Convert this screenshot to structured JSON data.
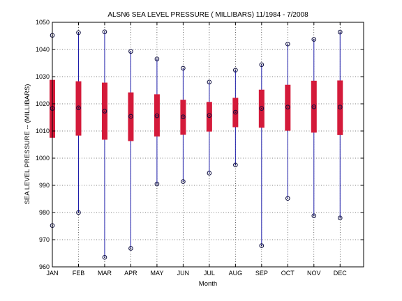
{
  "chart_data": {
    "type": "box",
    "title": "ALSN6  SEA LEVEL PRESSURE ( MILLIBARS) 11/1984 - 7/2008",
    "xlabel": "Month",
    "ylabel": "SEA LEVEL PRESSURE -- (MILLIBARS)",
    "ylim": [
      960,
      1050
    ],
    "yticks": [
      960,
      970,
      980,
      990,
      1000,
      1010,
      1020,
      1030,
      1040,
      1050
    ],
    "grid": true,
    "categories": [
      "JAN",
      "FEB",
      "MAR",
      "APR",
      "MAY",
      "JUN",
      "JUL",
      "AUG",
      "SEP",
      "OCT",
      "NOV",
      "DEC"
    ],
    "series": [
      {
        "whisker_low": [
          975.2,
          980.0,
          963.5,
          966.8,
          990.5,
          991.4,
          994.5,
          997.5,
          967.8,
          985.2,
          978.8,
          978.0
        ],
        "whisker_high": [
          1045.2,
          1046.2,
          1046.5,
          1039.3,
          1036.5,
          1033.1,
          1028.0,
          1032.4,
          1034.4,
          1042.0,
          1043.7,
          1046.4
        ],
        "q1": [
          1007.5,
          1008.3,
          1006.8,
          1006.3,
          1008.0,
          1008.6,
          1009.8,
          1011.4,
          1011.2,
          1010.1,
          1009.4,
          1008.5
        ],
        "q3": [
          1028.8,
          1028.3,
          1027.8,
          1024.2,
          1023.5,
          1021.5,
          1020.7,
          1022.2,
          1025.2,
          1027.0,
          1028.5,
          1028.6
        ],
        "median": [
          1018.3,
          1018.5,
          1017.3,
          1015.4,
          1015.6,
          1015.2,
          1015.7,
          1016.9,
          1018.3,
          1018.8,
          1018.9,
          1018.8
        ]
      }
    ],
    "colors": {
      "box": "#d41a3a",
      "whisker": "#1a1aa8",
      "marker": "#0a0a3c",
      "grid": "#000000"
    }
  }
}
